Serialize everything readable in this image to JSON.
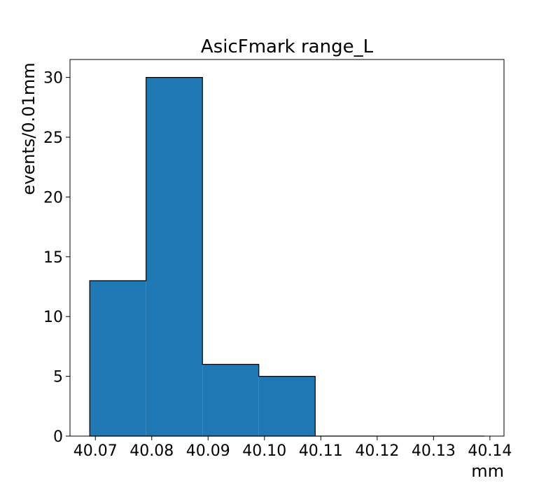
{
  "chart_data": {
    "type": "bar",
    "title": "AsicFmark range_L",
    "xlabel": "mm",
    "ylabel": "events/0.01mm",
    "bins": [
      {
        "x0": 40.069,
        "x1": 40.079,
        "count": 13
      },
      {
        "x0": 40.079,
        "x1": 40.089,
        "count": 30
      },
      {
        "x0": 40.089,
        "x1": 40.099,
        "count": 6
      },
      {
        "x0": 40.099,
        "x1": 40.109,
        "count": 5
      },
      {
        "x0": 40.109,
        "x1": 40.119,
        "count": 0
      },
      {
        "x0": 40.119,
        "x1": 40.129,
        "count": 0
      },
      {
        "x0": 40.129,
        "x1": 40.139,
        "count": 0
      }
    ],
    "xlim": [
      40.0655,
      40.1425
    ],
    "ylim": [
      0,
      31.5
    ],
    "xticks": [
      "40.07",
      "40.08",
      "40.09",
      "40.10",
      "40.11",
      "40.12",
      "40.13",
      "40.14"
    ],
    "yticks": [
      "0",
      "5",
      "10",
      "15",
      "20",
      "25",
      "30"
    ],
    "bar_color": "#1f77b4",
    "edge_color": "#000000",
    "grid": false,
    "legend": "none"
  }
}
